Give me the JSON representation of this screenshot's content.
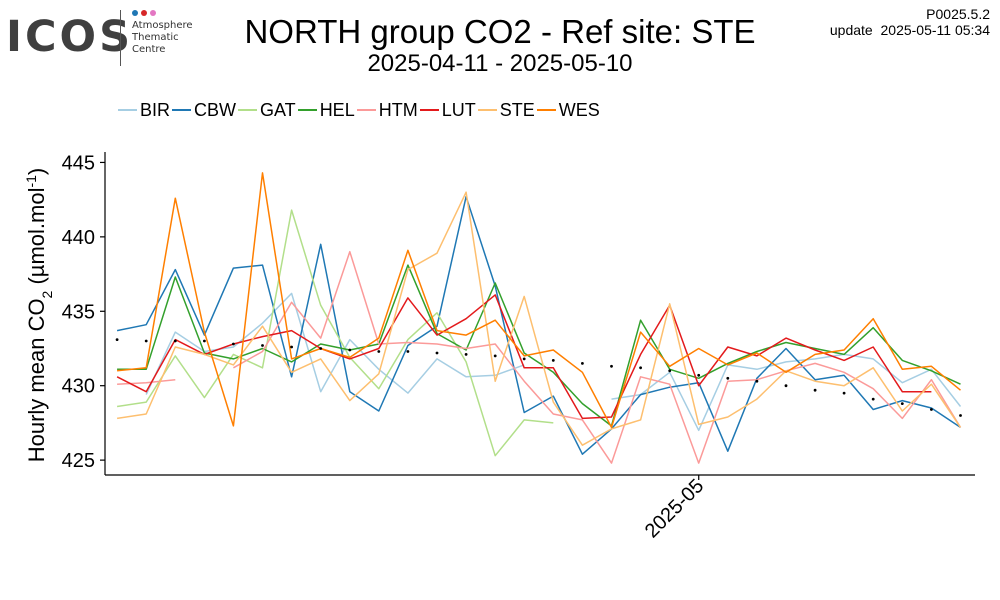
{
  "logo": {
    "text": "ICOS",
    "subtitle_lines": [
      "Atmosphere",
      "Thematic",
      "Centre"
    ],
    "dot_colors": [
      "#1f77b4",
      "#d62728",
      "#e377c2"
    ]
  },
  "header": {
    "title": "NORTH group CO2 - Ref site: STE",
    "subtitle": "2025-04-11 - 2025-05-10",
    "version": "P0025.5.2",
    "update": "update  2025-05-11 05:34"
  },
  "chart_data": {
    "type": "line",
    "title": "NORTH group CO2 - Ref site: STE",
    "subtitle": "2025-04-11 - 2025-05-10",
    "ylabel": "Hourly mean CO2 (µmol.mol-1)",
    "xlabel": "",
    "ylim": [
      424,
      445.5
    ],
    "xlim": [
      "2025-04-10T14:00",
      "2025-05-10T12:00"
    ],
    "yticks": [
      425,
      430,
      435,
      440,
      445
    ],
    "xticks": [
      {
        "value": "2025-05-01",
        "label": "2025-05"
      }
    ],
    "grid": false,
    "legend_position": "top",
    "x": [
      "2025-04-11",
      "2025-04-12",
      "2025-04-13",
      "2025-04-14",
      "2025-04-15",
      "2025-04-16",
      "2025-04-17",
      "2025-04-18",
      "2025-04-19",
      "2025-04-20",
      "2025-04-21",
      "2025-04-22",
      "2025-04-23",
      "2025-04-24",
      "2025-04-25",
      "2025-04-26",
      "2025-04-27",
      "2025-04-28",
      "2025-04-29",
      "2025-04-30",
      "2025-05-01",
      "2025-05-02",
      "2025-05-03",
      "2025-05-04",
      "2025-05-05",
      "2025-05-06",
      "2025-05-07",
      "2025-05-08",
      "2025-05-09",
      "2025-05-10"
    ],
    "series": [
      {
        "name": "BIR",
        "color": "#a6cee3",
        "values": [
          null,
          429.4,
          433.6,
          432.3,
          432.6,
          434.2,
          436.2,
          429.6,
          433.1,
          431.1,
          429.5,
          431.8,
          430.6,
          430.7,
          431.4,
          null,
          null,
          429.1,
          429.4,
          430.9,
          427.0,
          431.4,
          431.1,
          431.6,
          431.8,
          432.1,
          431.8,
          430.2,
          431.1,
          428.6
        ]
      },
      {
        "name": "CBW",
        "color": "#1f78b4",
        "values": [
          433.7,
          434.1,
          437.8,
          433.4,
          437.9,
          438.1,
          430.6,
          439.5,
          429.6,
          428.3,
          432.7,
          434.0,
          442.7,
          436.7,
          428.2,
          429.3,
          425.4,
          427.1,
          429.4,
          429.9,
          430.2,
          425.6,
          430.5,
          432.5,
          430.4,
          430.7,
          428.4,
          429.0,
          428.5,
          427.2
        ]
      },
      {
        "name": "GAT",
        "color": "#b2df8a",
        "values": [
          428.6,
          428.9,
          432.0,
          429.2,
          432.1,
          431.2,
          441.8,
          435.4,
          431.9,
          429.8,
          433.1,
          434.9,
          431.6,
          425.3,
          427.7,
          427.5,
          null,
          null,
          null,
          null,
          null,
          null,
          null,
          null,
          null,
          null,
          null,
          null,
          null,
          null
        ]
      },
      {
        "name": "HEL",
        "color": "#33a02c",
        "values": [
          431.1,
          431.1,
          437.3,
          432.2,
          431.8,
          432.5,
          431.6,
          432.8,
          432.4,
          432.8,
          438.1,
          433.5,
          432.4,
          436.9,
          432.2,
          430.9,
          428.8,
          427.3,
          434.4,
          431.1,
          430.5,
          431.5,
          432.3,
          432.9,
          432.5,
          432.1,
          433.9,
          431.7,
          431.0,
          430.1
        ]
      },
      {
        "name": "HTM",
        "color": "#fb9a99",
        "values": [
          430.1,
          430.2,
          430.4,
          null,
          431.2,
          432.3,
          435.6,
          433.2,
          439.0,
          432.8,
          432.9,
          432.8,
          432.5,
          432.8,
          430.3,
          428.1,
          427.7,
          424.8,
          430.6,
          430.1,
          424.8,
          430.3,
          430.4,
          431.0,
          431.5,
          430.9,
          429.8,
          427.8,
          430.4,
          427.2
        ]
      },
      {
        "name": "LUT",
        "color": "#e31a1c",
        "values": [
          430.6,
          429.6,
          433.1,
          432.1,
          432.8,
          433.3,
          433.7,
          432.5,
          431.8,
          432.5,
          435.9,
          433.4,
          434.5,
          436.1,
          431.2,
          431.2,
          427.8,
          427.9,
          432.1,
          435.4,
          430.0,
          432.6,
          432.0,
          433.2,
          432.4,
          431.7,
          432.6,
          429.6,
          429.6,
          null
        ]
      },
      {
        "name": "STE",
        "color": "#fdbf6f",
        "values": [
          427.8,
          428.1,
          432.6,
          432.1,
          431.4,
          434.0,
          430.9,
          431.8,
          429.0,
          430.8,
          437.8,
          438.9,
          443.0,
          430.3,
          436.0,
          428.9,
          426.0,
          427.1,
          427.7,
          435.5,
          427.4,
          427.9,
          429.1,
          431.0,
          430.3,
          430.0,
          431.2,
          428.3,
          430.1,
          427.2
        ]
      },
      {
        "name": "WES",
        "color": "#ff7f00",
        "values": [
          431.0,
          431.2,
          442.6,
          433.6,
          427.3,
          444.3,
          431.8,
          432.5,
          431.9,
          433.2,
          439.1,
          433.7,
          433.4,
          434.4,
          432.0,
          432.4,
          430.9,
          427.2,
          433.6,
          431.3,
          432.5,
          431.4,
          432.2,
          430.9,
          432.1,
          432.4,
          434.5,
          431.1,
          431.3,
          429.7
        ]
      },
      {
        "name": "",
        "color": "#000000",
        "style": "dots",
        "values": [
          433.1,
          433.0,
          433.0,
          433.0,
          432.8,
          432.7,
          432.6,
          432.5,
          432.4,
          432.3,
          432.3,
          432.2,
          432.1,
          432.0,
          431.8,
          431.7,
          431.5,
          431.3,
          431.2,
          431.0,
          430.7,
          430.5,
          430.3,
          430.0,
          429.7,
          429.5,
          429.1,
          428.8,
          428.4,
          428.0
        ]
      }
    ]
  }
}
